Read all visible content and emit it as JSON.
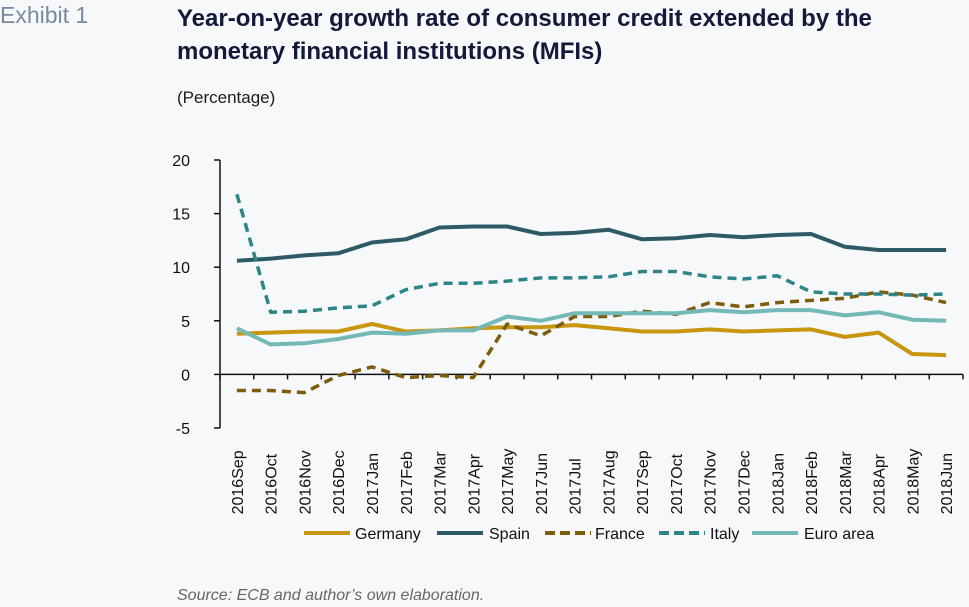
{
  "header": {
    "exhibit": "Exhibit 1",
    "title": "Year-on-year growth rate of consumer credit extended by the monetary financial institutions (MFIs)",
    "subtitle": "(Percentage)"
  },
  "footer": {
    "source": "Source: ECB and author’s own elaboration."
  },
  "chart_data": {
    "type": "line",
    "title": "Year-on-year growth rate of consumer credit extended by the monetary financial institutions (MFIs)",
    "subtitle": "(Percentage)",
    "xlabel": "",
    "ylabel": "",
    "ylim": [
      -5,
      20
    ],
    "yticks": [
      -5,
      0,
      5,
      10,
      15,
      20
    ],
    "grid": false,
    "legend_position": "bottom",
    "categories": [
      "2016Sep",
      "2016Oct",
      "2016Nov",
      "2016Dec",
      "2017Jan",
      "2017Feb",
      "2017Mar",
      "2017Apr",
      "2017May",
      "2017Jun",
      "2017Jul",
      "2017Aug",
      "2017Sep",
      "2017Oct",
      "2017Nov",
      "2017Dec",
      "2018Jan",
      "2018Feb",
      "2018Mar",
      "2018Apr",
      "2018May",
      "2018Jun"
    ],
    "series": [
      {
        "name": "Germany",
        "style": "solid",
        "color": "#c8960f",
        "values": [
          3.8,
          3.9,
          4.0,
          4.0,
          4.7,
          4.0,
          4.1,
          4.3,
          4.4,
          4.4,
          4.6,
          4.3,
          4.0,
          4.0,
          4.2,
          4.0,
          4.1,
          4.2,
          3.5,
          3.9,
          1.9,
          1.8
        ]
      },
      {
        "name": "Spain",
        "style": "solid",
        "color": "#2e5a66",
        "values": [
          10.6,
          10.8,
          11.1,
          11.3,
          12.3,
          12.6,
          13.7,
          13.8,
          13.8,
          13.1,
          13.2,
          13.5,
          12.6,
          12.7,
          13.0,
          12.8,
          13.0,
          13.1,
          11.9,
          11.6,
          11.6,
          11.6
        ]
      },
      {
        "name": "France",
        "style": "dashed",
        "color": "#7d5c0c",
        "values": [
          -1.5,
          -1.5,
          -1.7,
          -0.1,
          0.7,
          -0.3,
          -0.1,
          -0.3,
          4.7,
          3.6,
          5.4,
          5.4,
          5.9,
          5.6,
          6.7,
          6.3,
          6.7,
          6.9,
          7.1,
          7.7,
          7.4,
          6.7
        ]
      },
      {
        "name": "Italy",
        "style": "dashed",
        "color": "#2e8587",
        "values": [
          16.8,
          5.8,
          5.9,
          6.2,
          6.4,
          7.9,
          8.5,
          8.5,
          8.7,
          9.0,
          9.0,
          9.1,
          9.6,
          9.6,
          9.1,
          8.9,
          9.2,
          7.7,
          7.5,
          7.5,
          7.4,
          7.5
        ]
      },
      {
        "name": "Euro area",
        "style": "solid",
        "color": "#74b9b8",
        "values": [
          4.3,
          2.8,
          2.9,
          3.3,
          3.9,
          3.8,
          4.1,
          4.1,
          5.4,
          5.0,
          5.7,
          5.7,
          5.7,
          5.7,
          6.0,
          5.8,
          6.0,
          6.0,
          5.5,
          5.8,
          5.1,
          5.0
        ]
      }
    ]
  }
}
